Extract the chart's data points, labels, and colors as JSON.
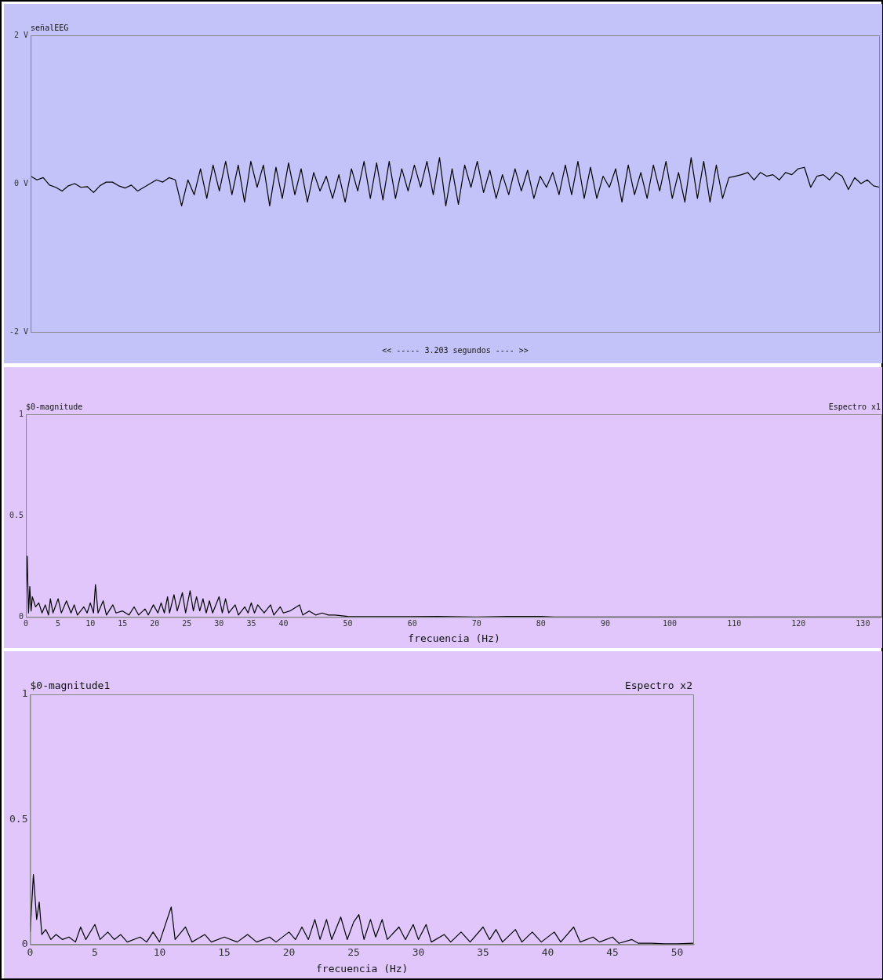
{
  "chart_data": [
    {
      "type": "line",
      "title": "señalEEG",
      "xlabel": "<< ----- 3.203 segundos ---- >>",
      "color": "#000000",
      "marker": "none",
      "categories": [
        null,
        null,
        null,
        null,
        null,
        null,
        null,
        null,
        null,
        null,
        null,
        null,
        null,
        null,
        null,
        null,
        null,
        null,
        null,
        null,
        null,
        null,
        null,
        null,
        null,
        null,
        null,
        null,
        null,
        null,
        null,
        null,
        null,
        null,
        null,
        null,
        null,
        null,
        null,
        null,
        null,
        null,
        null,
        null,
        null,
        null,
        null,
        null,
        null,
        null,
        null,
        null,
        null,
        null,
        null,
        null,
        null,
        null,
        null,
        null,
        null,
        null,
        null,
        null,
        null,
        null,
        null,
        null,
        null,
        null,
        null,
        null,
        null,
        null,
        null,
        null,
        null,
        null,
        null,
        null,
        null,
        null,
        null,
        null,
        null,
        null,
        null,
        null,
        null,
        null,
        null,
        null,
        null,
        null,
        null,
        null,
        null,
        null,
        null,
        null,
        null,
        null,
        null,
        null,
        null,
        null,
        null,
        null,
        null,
        null,
        null,
        null,
        null,
        null,
        null,
        null,
        null,
        null,
        null,
        null,
        null,
        null,
        null,
        null,
        null,
        null,
        null,
        null,
        null,
        null,
        null,
        null,
        null,
        null,
        null,
        null
      ],
      "values": [
        0.1,
        0.05,
        0.08,
        -0.02,
        -0.05,
        -0.1,
        -0.03,
        0,
        -0.05,
        -0.04,
        -0.12,
        -0.03,
        0.02,
        0.02,
        -0.03,
        -0.06,
        -0.02,
        -0.1,
        -0.05,
        0,
        0.05,
        0.02,
        0.08,
        0.05,
        -0.3,
        0.05,
        -0.15,
        0.2,
        -0.2,
        0.25,
        -0.1,
        0.3,
        -0.15,
        0.25,
        -0.25,
        0.3,
        -0.05,
        0.25,
        -0.3,
        0.22,
        -0.2,
        0.28,
        -0.15,
        0.2,
        -0.25,
        0.15,
        -0.1,
        0.1,
        -0.2,
        0.12,
        -0.25,
        0.2,
        -0.1,
        0.3,
        -0.2,
        0.28,
        -0.22,
        0.3,
        -0.2,
        0.2,
        -0.1,
        0.25,
        -0.05,
        0.3,
        -0.15,
        0.35,
        -0.3,
        0.2,
        -0.28,
        0.25,
        -0.05,
        0.3,
        -0.12,
        0.18,
        -0.2,
        0.12,
        -0.15,
        0.2,
        -0.1,
        0.18,
        -0.2,
        0.1,
        -0.05,
        0.15,
        -0.15,
        0.25,
        -0.15,
        0.3,
        -0.2,
        0.22,
        -0.2,
        0.1,
        -0.05,
        0.2,
        -0.25,
        0.25,
        -0.15,
        0.15,
        -0.2,
        0.25,
        -0.1,
        0.3,
        -0.2,
        0.15,
        -0.25,
        0.35,
        -0.2,
        0.3,
        -0.25,
        0.25,
        -0.2,
        0.08,
        0.1,
        0.12,
        0.15,
        0.05,
        0.15,
        0.1,
        0.12,
        0.05,
        0.15,
        0.12,
        0.2,
        0.22,
        -0.05,
        0.1,
        0.12,
        0.05,
        0.15,
        0.1,
        -0.08,
        0.08,
        0,
        0.05,
        -0.03,
        -0.05
      ],
      "ylim": [
        -2,
        2
      ],
      "yticks": [
        {
          "value": 2,
          "label": "2 V"
        },
        {
          "value": 0,
          "label": "0 V"
        },
        {
          "value": -2,
          "label": "-2 V"
        }
      ]
    },
    {
      "type": "line",
      "title": "$0-magnitude",
      "subtitle": "Espectro x1",
      "xlabel": "frecuencia (Hz)",
      "color": "#000000",
      "marker": "none",
      "x": [
        0,
        0.2,
        0.4,
        0.6,
        0.8,
        1,
        1.5,
        2,
        2.5,
        3,
        3.5,
        3.8,
        4.2,
        5,
        5.5,
        6.3,
        7,
        7.5,
        8,
        9,
        9.5,
        10,
        10.5,
        10.8,
        11.2,
        12,
        12.5,
        13.5,
        14,
        15,
        16,
        16.8,
        17.5,
        18.5,
        19,
        19.8,
        20.5,
        21,
        21.5,
        22,
        22.3,
        23,
        23.5,
        24.3,
        24.8,
        25.5,
        26,
        26.5,
        27,
        27.5,
        28,
        28.5,
        29,
        30,
        30.5,
        31,
        31.5,
        32.5,
        33,
        34,
        34.5,
        35,
        35.5,
        36,
        37,
        38,
        38.5,
        39.5,
        40,
        41,
        42.5,
        43,
        44,
        45,
        46,
        47,
        48,
        50,
        55,
        60,
        64,
        70,
        75,
        80,
        82,
        90,
        100,
        110,
        120,
        133
      ],
      "values": [
        0.05,
        0.3,
        0.02,
        0.15,
        0.03,
        0.1,
        0.05,
        0.07,
        0.02,
        0.06,
        0.01,
        0.09,
        0.02,
        0.09,
        0.02,
        0.08,
        0.02,
        0.06,
        0.01,
        0.05,
        0.02,
        0.07,
        0.02,
        0.16,
        0.02,
        0.08,
        0.01,
        0.06,
        0.02,
        0.03,
        0.01,
        0.05,
        0.01,
        0.04,
        0.01,
        0.06,
        0.02,
        0.07,
        0.02,
        0.1,
        0.02,
        0.11,
        0.03,
        0.12,
        0.02,
        0.13,
        0.03,
        0.1,
        0.03,
        0.09,
        0.02,
        0.08,
        0.02,
        0.1,
        0.02,
        0.09,
        0.02,
        0.06,
        0.01,
        0.05,
        0.02,
        0.07,
        0.02,
        0.06,
        0.02,
        0.06,
        0.01,
        0.05,
        0.02,
        0.03,
        0.06,
        0.01,
        0.03,
        0.01,
        0.02,
        0.01,
        0.01,
        0.003,
        0.002,
        0.002,
        0.003,
        0,
        0.003,
        0.003,
        0,
        0,
        0,
        0,
        0,
        0
      ],
      "xlim": [
        0,
        133
      ],
      "xticks": [
        0,
        5,
        10,
        15,
        20,
        25,
        30,
        35,
        40,
        50,
        60,
        70,
        80,
        90,
        100,
        110,
        120,
        130
      ],
      "ylim": [
        0,
        1
      ],
      "yticks": [
        0,
        0.5,
        1
      ]
    },
    {
      "type": "line",
      "title": "$0-magnitude1",
      "subtitle": "Espectro x2",
      "xlabel": "frecuencia (Hz)",
      "color": "#000000",
      "marker": "none",
      "x": [
        0,
        0.25,
        0.5,
        0.7,
        0.9,
        1.2,
        1.6,
        2,
        2.5,
        3,
        3.5,
        3.9,
        4.3,
        5,
        5.4,
        6,
        6.5,
        7,
        7.5,
        8.5,
        9,
        9.5,
        10,
        10.9,
        11.2,
        12,
        12.5,
        13.5,
        14,
        15,
        16,
        16.8,
        17.5,
        18.5,
        19,
        20,
        20.5,
        21,
        21.5,
        22,
        22.4,
        22.9,
        23.3,
        24,
        24.5,
        25,
        25.4,
        25.8,
        26.3,
        26.7,
        27.2,
        27.6,
        28.5,
        29,
        29.6,
        30,
        30.6,
        31,
        32,
        32.5,
        33.3,
        34,
        35,
        35.5,
        36,
        36.5,
        37.5,
        38,
        38.8,
        39.5,
        40.5,
        41,
        42,
        42.5,
        43.5,
        44,
        45,
        45.5,
        46.5,
        47,
        48,
        49,
        50,
        51.3
      ],
      "values": [
        0.05,
        0.28,
        0.1,
        0.17,
        0.04,
        0.06,
        0.02,
        0.04,
        0.02,
        0.03,
        0.01,
        0.07,
        0.02,
        0.08,
        0.02,
        0.05,
        0.02,
        0.04,
        0.01,
        0.03,
        0.01,
        0.05,
        0.01,
        0.15,
        0.02,
        0.07,
        0.01,
        0.04,
        0.01,
        0.03,
        0.01,
        0.04,
        0.01,
        0.03,
        0.01,
        0.05,
        0.02,
        0.07,
        0.02,
        0.1,
        0.02,
        0.1,
        0.02,
        0.11,
        0.02,
        0.09,
        0.12,
        0.02,
        0.1,
        0.03,
        0.1,
        0.02,
        0.07,
        0.02,
        0.08,
        0.02,
        0.08,
        0.01,
        0.04,
        0.01,
        0.05,
        0.01,
        0.07,
        0.02,
        0.06,
        0.01,
        0.06,
        0.01,
        0.05,
        0.01,
        0.05,
        0.01,
        0.07,
        0.01,
        0.03,
        0.01,
        0.03,
        0.005,
        0.02,
        0.005,
        0.005,
        0.003,
        0.003,
        0.005
      ],
      "xlim": [
        0,
        51.3
      ],
      "xticks": [
        0,
        5,
        10,
        15,
        20,
        25,
        30,
        35,
        40,
        45,
        50
      ],
      "ylim": [
        0,
        1
      ],
      "yticks": [
        0,
        0.5,
        1
      ]
    }
  ]
}
